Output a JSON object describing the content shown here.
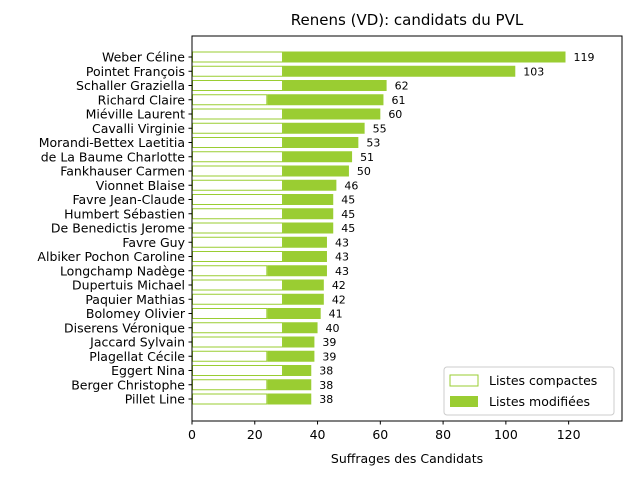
{
  "chart_data": {
    "type": "bar",
    "orientation": "horizontal",
    "stacked": true,
    "title": "Renens (VD): candidats du PVL",
    "xlabel": "Suffrages des Candidats",
    "ylabel": "",
    "xlim": [
      0,
      137
    ],
    "xticks": [
      0,
      20,
      40,
      60,
      80,
      100,
      120
    ],
    "grid": false,
    "legend_position": "lower-right",
    "colors": {
      "compactes_edge": "#9ACD32",
      "compactes_fill": "#ffffff",
      "modifiees_fill": "#9ACD32"
    },
    "categories": [
      "Weber Céline",
      "Pointet François",
      "Schaller Graziella",
      "Richard Claire",
      "Miéville Laurent",
      "Cavalli Virginie",
      "Morandi-Bettex Laetitia",
      "de La Baume Charlotte",
      "Fankhauser Carmen",
      "Vionnet Blaise",
      "Favre Jean-Claude",
      "Humbert Sébastien",
      "De Benedictis Jerome",
      "Favre Guy",
      "Albiker Pochon Caroline",
      "Longchamp Nadège",
      "Dupertuis Michael",
      "Paquier Mathias",
      "Bolomey Olivier",
      "Diserens Véronique",
      "Jaccard Sylvain",
      "Plagellat Cécile",
      "Eggert Nina",
      "Berger Christophe",
      "Pillet Line"
    ],
    "series": [
      {
        "name": "Listes compactes",
        "values": [
          29,
          29,
          29,
          24,
          29,
          29,
          29,
          29,
          29,
          29,
          29,
          29,
          29,
          29,
          29,
          24,
          29,
          29,
          24,
          29,
          29,
          24,
          29,
          24,
          24
        ]
      },
      {
        "name": "Listes modifiées",
        "values": [
          90,
          74,
          33,
          37,
          31,
          26,
          24,
          22,
          21,
          17,
          16,
          16,
          16,
          14,
          14,
          19,
          13,
          13,
          17,
          11,
          10,
          15,
          9,
          14,
          14
        ]
      }
    ],
    "totals": [
      119,
      103,
      62,
      61,
      60,
      55,
      53,
      51,
      50,
      46,
      45,
      45,
      45,
      43,
      43,
      43,
      42,
      42,
      41,
      40,
      39,
      39,
      38,
      38,
      38
    ]
  }
}
